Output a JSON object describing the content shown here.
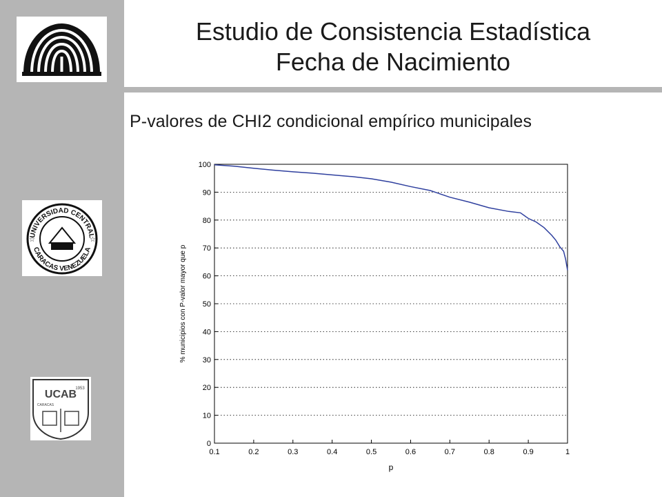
{
  "header": {
    "title_line1": "Estudio de Consistencia Estadística",
    "title_line2": "Fecha de Nacimiento"
  },
  "subtitle": "P-valores de CHI2 condicional empírico municipales",
  "logos": {
    "ucv_text_top": "UNIVERSIDAD CENTRAL",
    "ucv_text_bottom": "CARACAS VENEZUELA",
    "ucab_text": "UCAB",
    "ucab_year": "1953",
    "ucab_city": "CARACAS"
  },
  "colors": {
    "sidebar": "#b5b5b5",
    "line": "#2e3f9e"
  },
  "chart_data": {
    "type": "line",
    "xlabel": "p",
    "ylabel": "% municipios con P-valor mayor que p",
    "xlim": [
      0.1,
      1.0
    ],
    "ylim": [
      0,
      100
    ],
    "xticks": [
      "0.1",
      "0.2",
      "0.3",
      "0.4",
      "0.5",
      "0.6",
      "0.7",
      "0.8",
      "0.9",
      "1"
    ],
    "yticks": [
      "0",
      "10",
      "20",
      "30",
      "40",
      "50",
      "60",
      "70",
      "80",
      "90",
      "100"
    ],
    "grid": "dotted",
    "x": [
      0.1,
      0.15,
      0.2,
      0.25,
      0.3,
      0.35,
      0.4,
      0.45,
      0.5,
      0.55,
      0.6,
      0.65,
      0.7,
      0.75,
      0.8,
      0.85,
      0.88,
      0.9,
      0.92,
      0.94,
      0.96,
      0.97,
      0.98,
      0.99,
      0.995,
      1.0
    ],
    "y": [
      99.8,
      99.3,
      98.6,
      97.9,
      97.3,
      96.8,
      96.2,
      95.6,
      94.8,
      93.6,
      92.0,
      90.6,
      88.2,
      86.4,
      84.4,
      83.1,
      82.6,
      80.6,
      79.3,
      77.3,
      74.5,
      72.8,
      70.5,
      68.8,
      66.0,
      62.0
    ]
  }
}
